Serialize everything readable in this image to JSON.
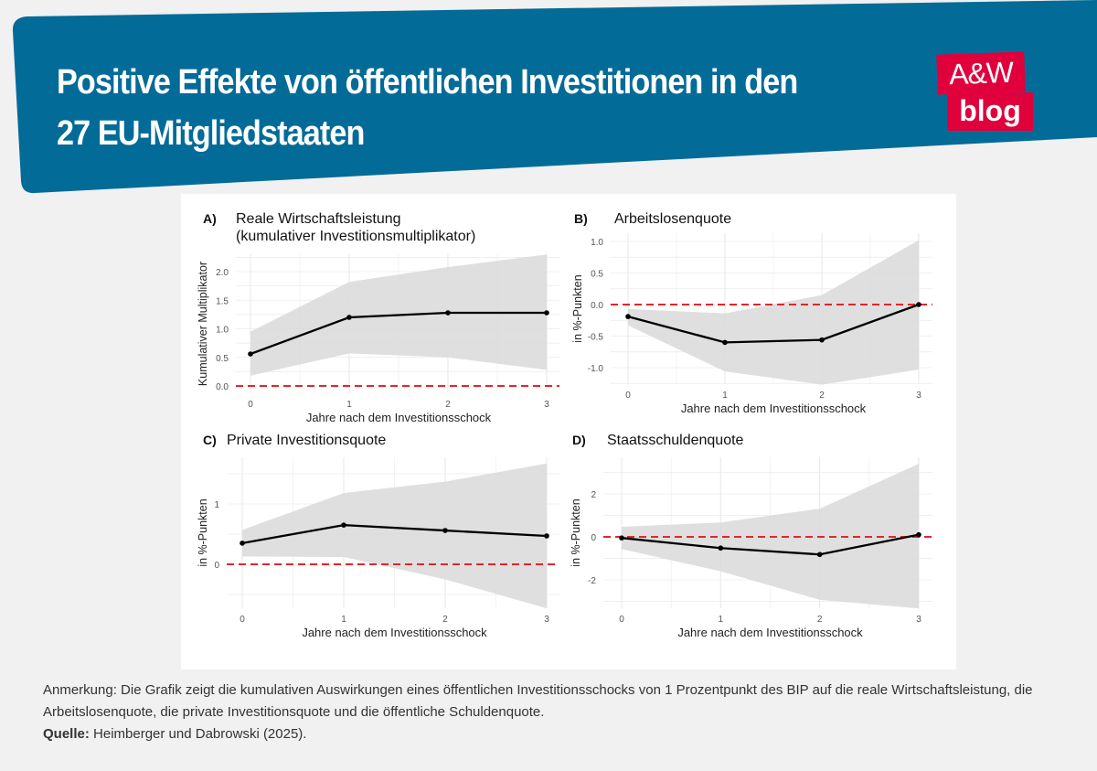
{
  "header": {
    "title_line1": "Positive Effekte von öffentlichen Investitionen in den",
    "title_line2": "27 EU-Mitgliedstaaten",
    "logo_top": "A&W",
    "logo_bottom": "blog",
    "colors": {
      "header_bg": "#036b98",
      "logo_bg": "#e0003c"
    }
  },
  "chart_data": [
    {
      "type": "line",
      "label": "A)",
      "title": "Reale Wirtschaftsleistung",
      "subtitle": "(kumulativer Investitionsmultiplikator)",
      "xlabel": "Jahre nach dem Investitionsschock",
      "ylabel": "Kumulativer Multiplikator",
      "x": [
        0,
        1,
        2,
        3
      ],
      "y": [
        0.56,
        1.2,
        1.28,
        1.28
      ],
      "lower": [
        0.18,
        0.57,
        0.5,
        0.28
      ],
      "upper": [
        0.95,
        1.82,
        2.08,
        2.3
      ],
      "yticks": [
        "0.0",
        "0.5",
        "1.0",
        "1.5",
        "2.0"
      ],
      "ytick_values": [
        0,
        0.5,
        1,
        1.5,
        2
      ],
      "xticks": [
        "0",
        "1",
        "2",
        "3"
      ],
      "ylim": [
        -0.05,
        2.4
      ],
      "reference_line": 0
    },
    {
      "type": "line",
      "label": "B)",
      "title": "Arbeitslosenquote",
      "subtitle": "",
      "xlabel": "Jahre nach dem Investitionsschock",
      "ylabel": "in %-Punkten",
      "x": [
        0,
        1,
        2,
        3
      ],
      "y": [
        -0.19,
        -0.6,
        -0.56,
        0.0
      ],
      "lower": [
        -0.33,
        -1.06,
        -1.27,
        -1.03
      ],
      "upper": [
        -0.07,
        -0.14,
        0.15,
        1.02
      ],
      "yticks": [
        "-1.0",
        "-0.5",
        "0.0",
        "0.5",
        "1.0"
      ],
      "ytick_values": [
        -1,
        -0.5,
        0,
        0.5,
        1
      ],
      "xticks": [
        "0",
        "1",
        "2",
        "3"
      ],
      "ylim": [
        -1.3,
        1.1
      ],
      "reference_line": 0
    },
    {
      "type": "line",
      "label": "C)",
      "title": "Private Investitionsquote",
      "subtitle": "",
      "xlabel": "Jahre nach dem Investitionsschock",
      "ylabel": "in %-Punkten",
      "x": [
        0,
        1,
        2,
        3
      ],
      "y": [
        0.35,
        0.65,
        0.56,
        0.47
      ],
      "lower": [
        0.13,
        0.12,
        -0.25,
        -0.73
      ],
      "upper": [
        0.57,
        1.18,
        1.37,
        1.67
      ],
      "yticks": [
        "0",
        "1"
      ],
      "ytick_values": [
        0,
        1
      ],
      "xticks": [
        "0",
        "1",
        "2",
        "3"
      ],
      "ylim": [
        -0.85,
        1.8
      ],
      "reference_line": 0
    },
    {
      "type": "line",
      "label": "D)",
      "title": "Staatsschuldenquote",
      "subtitle": "",
      "xlabel": "Jahre nach dem Investitionsschock",
      "ylabel": "in %-Punkten",
      "x": [
        0,
        1,
        2,
        3
      ],
      "y": [
        -0.05,
        -0.52,
        -0.82,
        0.1
      ],
      "lower": [
        -0.57,
        -1.6,
        -2.93,
        -3.33
      ],
      "upper": [
        0.47,
        0.67,
        1.31,
        3.4
      ],
      "yticks": [
        "-2",
        "0",
        "2"
      ],
      "ytick_values": [
        -2,
        0,
        2
      ],
      "xticks": [
        "0",
        "1",
        "2",
        "3"
      ],
      "ylim": [
        -3.7,
        3.7
      ],
      "reference_line": 0
    }
  ],
  "footer": {
    "note": "Anmerkung: Die Grafik zeigt die kumulativen Auswirkungen eines öffentlichen Investitionsschocks von 1 Prozentpunkt des BIP auf die reale Wirtschaftsleistung, die Arbeitslosenquote, die private Investitionsquote und die öffentliche Schuldenquote.",
    "source_label": "Quelle:",
    "source": " Heimberger und Dabrowski (2025)."
  }
}
